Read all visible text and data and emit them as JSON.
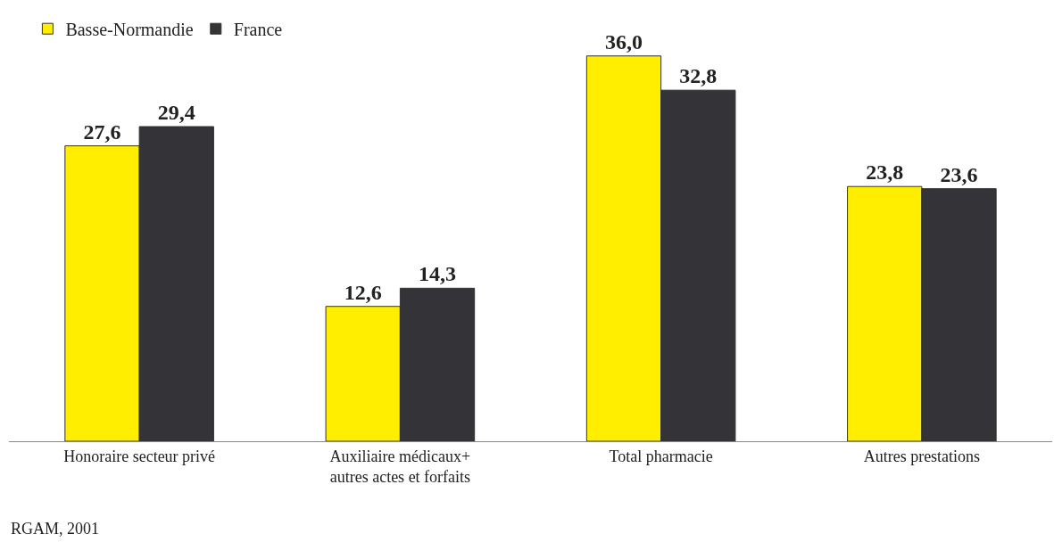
{
  "chart_data": {
    "type": "bar",
    "categories": [
      "Honoraire secteur privé",
      "Auxiliaire médicaux+\nautres actes et forfaits",
      "Total pharmacie",
      "Autres prestations"
    ],
    "series": [
      {
        "name": "Basse-Normandie",
        "color": "#ffee00",
        "values": [
          27.6,
          12.6,
          36.0,
          23.8
        ],
        "value_labels": [
          "27,6",
          "12,6",
          "36,0",
          "23,8"
        ]
      },
      {
        "name": "France",
        "color": "#333338",
        "values": [
          29.4,
          14.3,
          32.8,
          23.6
        ],
        "value_labels": [
          "29,4",
          "14,3",
          "32,8",
          "23,6"
        ]
      }
    ],
    "legend": "top left",
    "annotations": [
      "RGAM, 2001"
    ]
  }
}
